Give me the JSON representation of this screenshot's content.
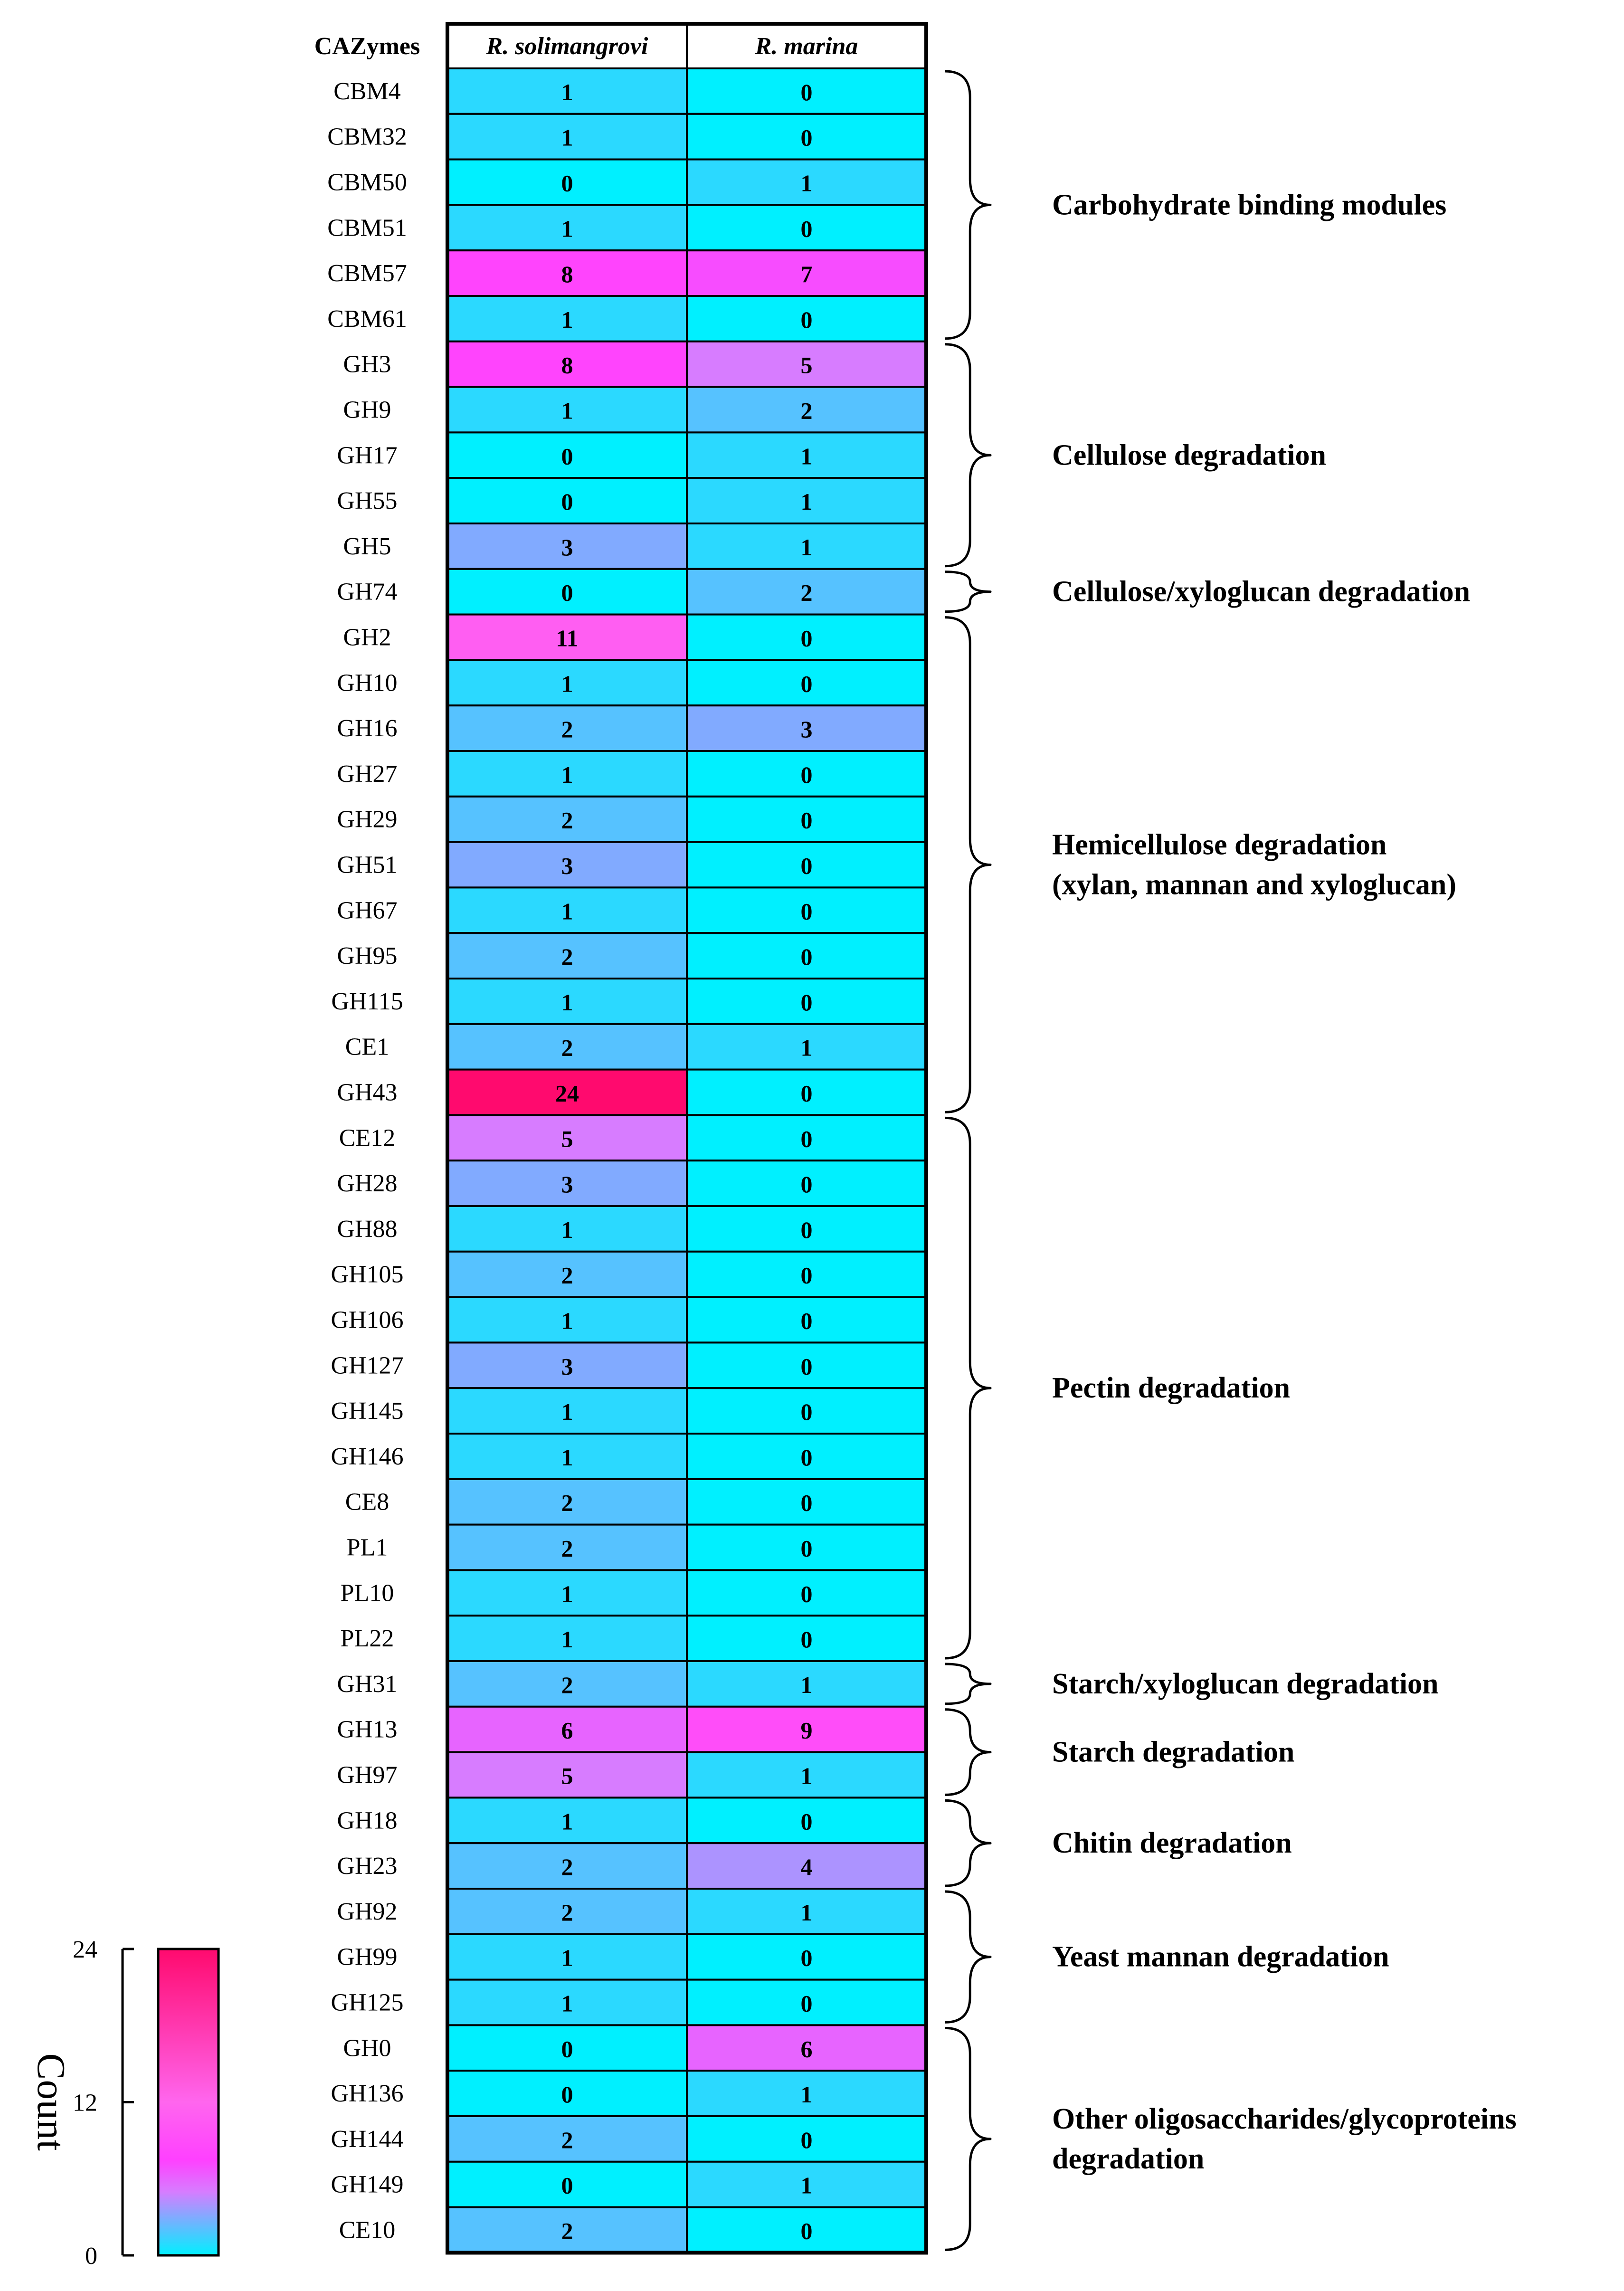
{
  "chart_data": {
    "type": "heatmap",
    "header_label": "CAZymes",
    "columns": [
      "R. solimangrovi",
      "R. marina"
    ],
    "rows": [
      {
        "label": "CBM4",
        "values": [
          1,
          0
        ]
      },
      {
        "label": "CBM32",
        "values": [
          1,
          0
        ]
      },
      {
        "label": "CBM50",
        "values": [
          0,
          1
        ]
      },
      {
        "label": "CBM51",
        "values": [
          1,
          0
        ]
      },
      {
        "label": "CBM57",
        "values": [
          8,
          7
        ]
      },
      {
        "label": "CBM61",
        "values": [
          1,
          0
        ]
      },
      {
        "label": "GH3",
        "values": [
          8,
          5
        ]
      },
      {
        "label": "GH9",
        "values": [
          1,
          2
        ]
      },
      {
        "label": "GH17",
        "values": [
          0,
          1
        ]
      },
      {
        "label": "GH55",
        "values": [
          0,
          1
        ]
      },
      {
        "label": "GH5",
        "values": [
          3,
          1
        ]
      },
      {
        "label": "GH74",
        "values": [
          0,
          2
        ]
      },
      {
        "label": "GH2",
        "values": [
          11,
          0
        ]
      },
      {
        "label": "GH10",
        "values": [
          1,
          0
        ]
      },
      {
        "label": "GH16",
        "values": [
          2,
          3
        ]
      },
      {
        "label": "GH27",
        "values": [
          1,
          0
        ]
      },
      {
        "label": "GH29",
        "values": [
          2,
          0
        ]
      },
      {
        "label": "GH51",
        "values": [
          3,
          0
        ]
      },
      {
        "label": "GH67",
        "values": [
          1,
          0
        ]
      },
      {
        "label": "GH95",
        "values": [
          2,
          0
        ]
      },
      {
        "label": "GH115",
        "values": [
          1,
          0
        ]
      },
      {
        "label": "CE1",
        "values": [
          2,
          1
        ]
      },
      {
        "label": "GH43",
        "values": [
          24,
          0
        ]
      },
      {
        "label": "CE12",
        "values": [
          5,
          0
        ]
      },
      {
        "label": "GH28",
        "values": [
          3,
          0
        ]
      },
      {
        "label": "GH88",
        "values": [
          1,
          0
        ]
      },
      {
        "label": "GH105",
        "values": [
          2,
          0
        ]
      },
      {
        "label": "GH106",
        "values": [
          1,
          0
        ]
      },
      {
        "label": "GH127",
        "values": [
          3,
          0
        ]
      },
      {
        "label": "GH145",
        "values": [
          1,
          0
        ]
      },
      {
        "label": "GH146",
        "values": [
          1,
          0
        ]
      },
      {
        "label": "CE8",
        "values": [
          2,
          0
        ]
      },
      {
        "label": "PL1",
        "values": [
          2,
          0
        ]
      },
      {
        "label": "PL10",
        "values": [
          1,
          0
        ]
      },
      {
        "label": "PL22",
        "values": [
          1,
          0
        ]
      },
      {
        "label": "GH31",
        "values": [
          2,
          1
        ]
      },
      {
        "label": "GH13",
        "values": [
          6,
          9
        ]
      },
      {
        "label": "GH97",
        "values": [
          5,
          1
        ]
      },
      {
        "label": "GH18",
        "values": [
          1,
          0
        ]
      },
      {
        "label": "GH23",
        "values": [
          2,
          4
        ]
      },
      {
        "label": "GH92",
        "values": [
          2,
          1
        ]
      },
      {
        "label": "GH99",
        "values": [
          1,
          0
        ]
      },
      {
        "label": "GH125",
        "values": [
          1,
          0
        ]
      },
      {
        "label": "GH0",
        "values": [
          0,
          6
        ]
      },
      {
        "label": "GH136",
        "values": [
          0,
          1
        ]
      },
      {
        "label": "GH144",
        "values": [
          2,
          0
        ]
      },
      {
        "label": "GH149",
        "values": [
          0,
          1
        ]
      },
      {
        "label": "CE10",
        "values": [
          2,
          0
        ]
      }
    ],
    "groups": [
      {
        "label_lines": [
          "Carbohydrate binding modules"
        ],
        "start": 0,
        "end": 5
      },
      {
        "label_lines": [
          "Cellulose degradation"
        ],
        "start": 6,
        "end": 10
      },
      {
        "label_lines": [
          "Cellulose/xyloglucan degradation"
        ],
        "start": 11,
        "end": 11
      },
      {
        "label_lines": [
          "Hemicellulose degradation",
          "(xylan, mannan and xyloglucan)"
        ],
        "start": 12,
        "end": 22
      },
      {
        "label_lines": [
          "Pectin degradation"
        ],
        "start": 23,
        "end": 34
      },
      {
        "label_lines": [
          "Starch/xyloglucan degradation"
        ],
        "start": 35,
        "end": 35
      },
      {
        "label_lines": [
          "Starch degradation"
        ],
        "start": 36,
        "end": 37
      },
      {
        "label_lines": [
          "Chitin degradation"
        ],
        "start": 38,
        "end": 39
      },
      {
        "label_lines": [
          "Yeast mannan degradation"
        ],
        "start": 40,
        "end": 42
      },
      {
        "label_lines": [
          "Other oligosaccharides/glycoproteins",
          "degradation"
        ],
        "start": 43,
        "end": 47
      }
    ],
    "colorbar": {
      "title": "Count",
      "min": 0,
      "max": 24,
      "ticks": [
        0,
        12,
        24
      ],
      "stops": [
        {
          "value": 0,
          "color": "#00f0ff"
        },
        {
          "value": 5,
          "color": "#d77cff"
        },
        {
          "value": 7.5,
          "color": "#ff40ff"
        },
        {
          "value": 12,
          "color": "#ff66ee"
        },
        {
          "value": 24,
          "color": "#ff0a6e"
        }
      ]
    }
  }
}
